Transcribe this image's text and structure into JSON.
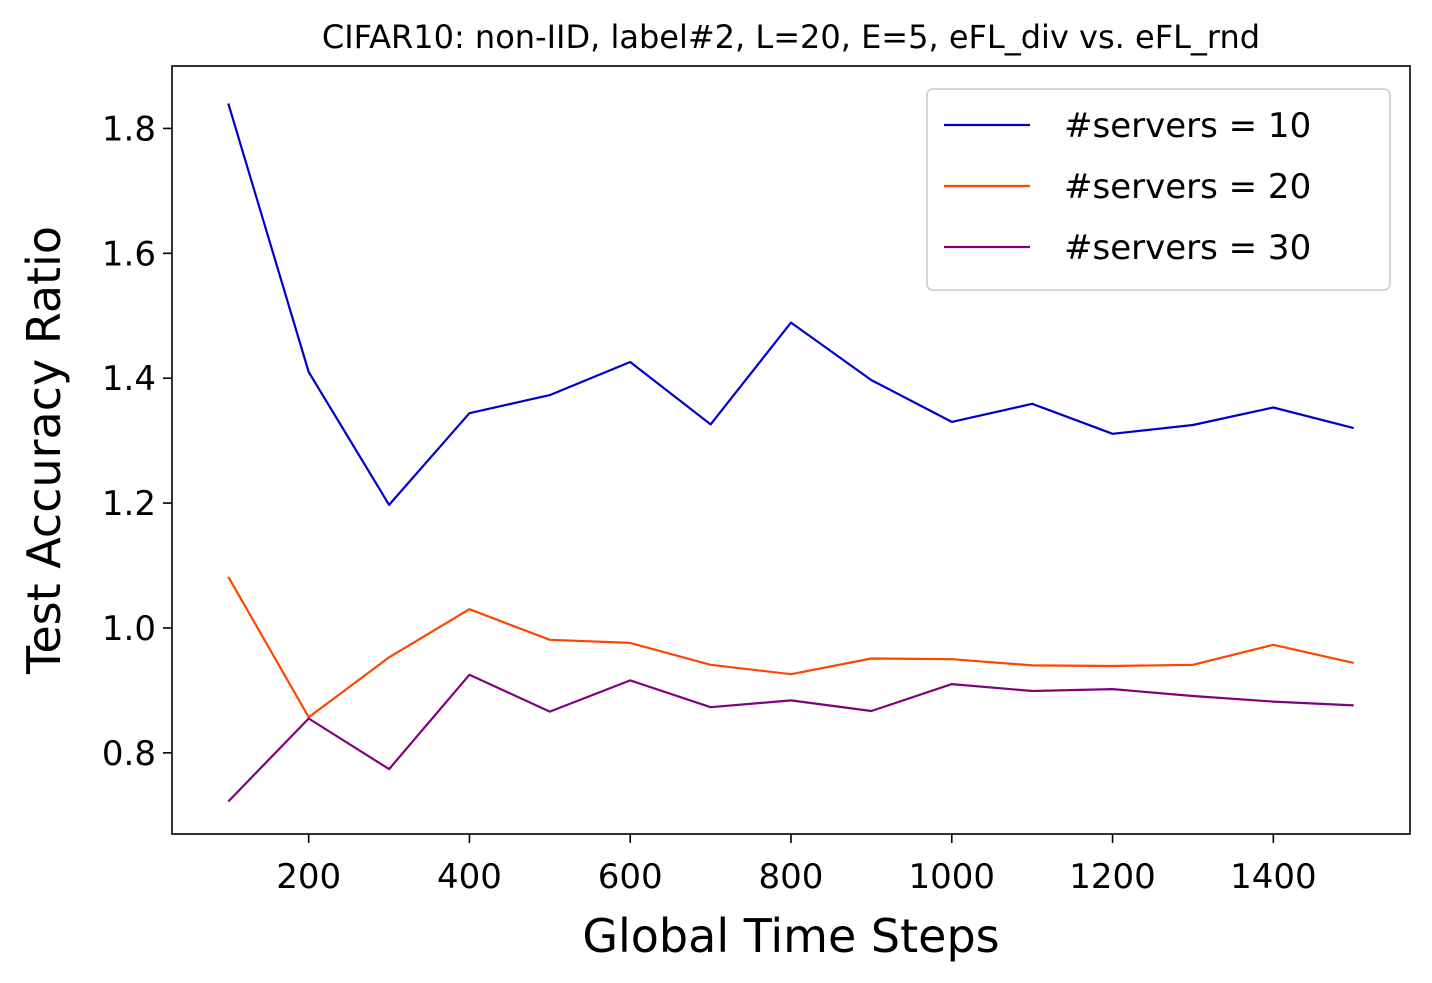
{
  "chart_data": {
    "type": "line",
    "title": "CIFAR10: non-IID, label#2, L=20, E=5, eFL_div vs. eFL_rnd",
    "xlabel": "Global Time Steps",
    "ylabel": "Test Accuracy Ratio",
    "xlim": [
      30,
      1570
    ],
    "ylim": [
      0.67,
      1.9
    ],
    "xticks": [
      200,
      400,
      600,
      800,
      1000,
      1200,
      1400
    ],
    "xtick_labels": [
      "200",
      "400",
      "600",
      "800",
      "1000",
      "1200",
      "1400"
    ],
    "yticks": [
      0.8,
      1.0,
      1.2,
      1.4,
      1.6,
      1.8
    ],
    "ytick_labels": [
      "0.8",
      "1.0",
      "1.2",
      "1.4",
      "1.6",
      "1.8"
    ],
    "grid": false,
    "legend_position": "top-right",
    "x": [
      100,
      200,
      300,
      400,
      500,
      600,
      700,
      800,
      900,
      1000,
      1100,
      1200,
      1300,
      1400,
      1500
    ],
    "series": [
      {
        "name": "#servers = 10",
        "color": "#0000cd",
        "values": [
          1.84,
          1.41,
          1.197,
          1.344,
          1.373,
          1.426,
          1.326,
          1.489,
          1.397,
          1.33,
          1.359,
          1.311,
          1.325,
          1.353,
          1.32
        ]
      },
      {
        "name": "#servers = 20",
        "color": "#ff4500",
        "values": [
          1.082,
          0.857,
          0.953,
          1.03,
          0.981,
          0.976,
          0.941,
          0.926,
          0.951,
          0.95,
          0.94,
          0.939,
          0.941,
          0.973,
          0.944
        ]
      },
      {
        "name": "#servers = 30",
        "color": "#800080",
        "values": [
          0.722,
          0.855,
          0.774,
          0.925,
          0.866,
          0.916,
          0.873,
          0.884,
          0.867,
          0.91,
          0.899,
          0.902,
          0.891,
          0.882,
          0.876
        ]
      }
    ]
  }
}
